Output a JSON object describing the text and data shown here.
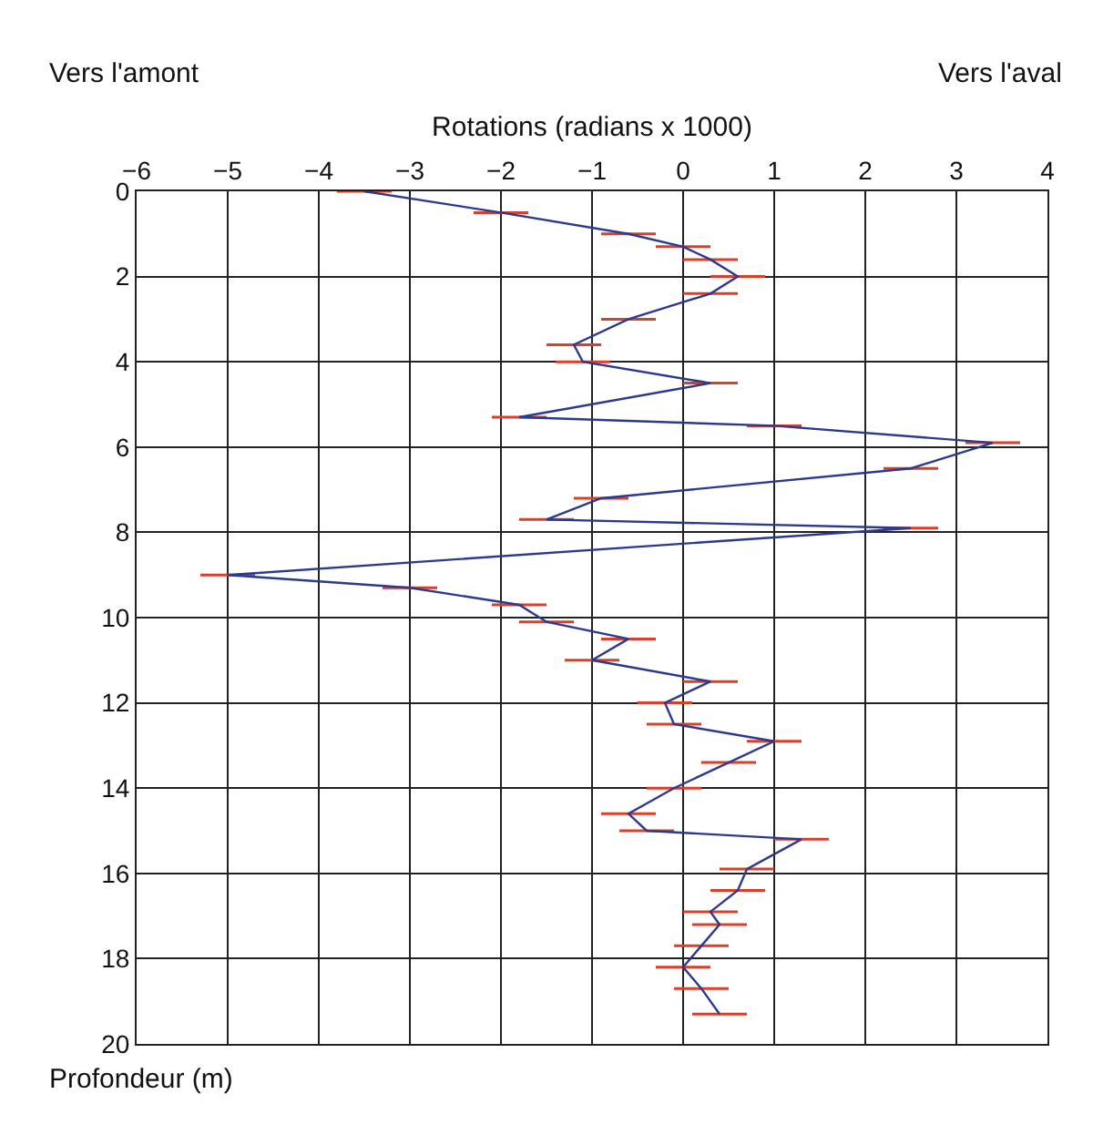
{
  "chart_data": {
    "type": "line",
    "orientation": "horizontal",
    "xlabel": "Rotations (radians x 1000)",
    "ylabel": "Profondeur (m)",
    "annotations": [
      "Vers l'amont",
      "Vers l'aval"
    ],
    "x": [
      0,
      0.5,
      1.0,
      1.3,
      1.6,
      2.0,
      2.4,
      3.0,
      3.6,
      4.0,
      4.5,
      5.3,
      5.5,
      5.9,
      6.5,
      7.2,
      7.7,
      7.9,
      9.0,
      9.3,
      9.7,
      10.1,
      10.5,
      11.0,
      11.5,
      12.0,
      12.5,
      12.9,
      13.4,
      14.0,
      14.6,
      15.0,
      15.2,
      15.9,
      16.4,
      16.9,
      17.2,
      17.7,
      18.2,
      18.7,
      19.3
    ],
    "series": [
      {
        "color": "#2b3a8c",
        "values": [
          -3.5,
          -2.0,
          -0.6,
          0.0,
          0.3,
          0.6,
          0.3,
          -0.6,
          -1.2,
          -1.1,
          0.3,
          -1.8,
          1.0,
          3.4,
          2.5,
          -0.9,
          -1.5,
          2.5,
          -5.0,
          -3.0,
          -1.8,
          -1.5,
          -0.6,
          -1.0,
          0.3,
          -0.2,
          -0.1,
          1.0,
          0.5,
          -0.1,
          -0.6,
          -0.4,
          1.3,
          0.7,
          0.6,
          0.3,
          0.4,
          0.2,
          0.0,
          0.2,
          0.4
        ],
        "errors": [
          0.3,
          0.3,
          0.3,
          0.3,
          0.3,
          0.3,
          0.3,
          0.3,
          0.3,
          0.3,
          0.3,
          0.3,
          0.3,
          0.3,
          0.3,
          0.3,
          0.3,
          0.3,
          0.3,
          0.3,
          0.3,
          0.3,
          0.3,
          0.3,
          0.3,
          0.3,
          0.3,
          0.3,
          0.3,
          0.3,
          0.3,
          0.3,
          0.3,
          0.3,
          0.3,
          0.3,
          0.3,
          0.3,
          0.3,
          0.3,
          0.3
        ]
      }
    ],
    "xlim": [
      -6,
      4
    ],
    "xticks": [
      -6,
      -5,
      -4,
      -3,
      -2,
      -1,
      0,
      1,
      2,
      3,
      4
    ],
    "ylim": [
      20,
      0
    ],
    "yticks": [
      0,
      2,
      4,
      6,
      8,
      10,
      12,
      14,
      16,
      18,
      20
    ],
    "grid": true,
    "marker": "none",
    "line_style": "solid"
  }
}
